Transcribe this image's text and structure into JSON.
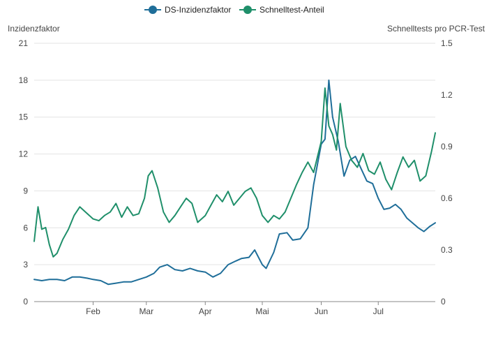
{
  "chart_data": {
    "type": "line",
    "x_kind": "date",
    "x_range": [
      "2022-01-01",
      "2022-07-31"
    ],
    "x_tick_labels": [
      {
        "date": "2022-02-01",
        "label": "Feb"
      },
      {
        "date": "2022-03-01",
        "label": "Mar"
      },
      {
        "date": "2022-04-01",
        "label": "Apr"
      },
      {
        "date": "2022-05-01",
        "label": "Mai"
      },
      {
        "date": "2022-06-01",
        "label": "Jun"
      },
      {
        "date": "2022-07-01",
        "label": "Jul"
      }
    ],
    "y_left": {
      "label": "Inzidenzfaktor",
      "ylim": [
        0,
        21
      ],
      "ticks": [
        "0",
        "3",
        "6",
        "9",
        "12",
        "15",
        "18",
        "21"
      ]
    },
    "y_right": {
      "label": "Schnelltests pro PCR-Test",
      "ylim": [
        0,
        1.5
      ],
      "ticks": [
        "0",
        "0.3",
        "0.6",
        "0.9",
        "1.2",
        "1.5"
      ]
    },
    "grid": true,
    "legend_position": "top-center",
    "series": [
      {
        "name": "DS-Inzidenzfaktor",
        "axis": "left",
        "color": "#1f6e99",
        "points": [
          [
            "2022-01-01",
            1.8
          ],
          [
            "2022-01-05",
            1.7
          ],
          [
            "2022-01-09",
            1.8
          ],
          [
            "2022-01-13",
            1.8
          ],
          [
            "2022-01-17",
            1.7
          ],
          [
            "2022-01-21",
            2.0
          ],
          [
            "2022-01-25",
            2.0
          ],
          [
            "2022-01-29",
            1.9
          ],
          [
            "2022-02-01",
            1.8
          ],
          [
            "2022-02-05",
            1.7
          ],
          [
            "2022-02-09",
            1.4
          ],
          [
            "2022-02-13",
            1.5
          ],
          [
            "2022-02-17",
            1.6
          ],
          [
            "2022-02-21",
            1.6
          ],
          [
            "2022-02-25",
            1.8
          ],
          [
            "2022-03-01",
            2.0
          ],
          [
            "2022-03-05",
            2.3
          ],
          [
            "2022-03-08",
            2.8
          ],
          [
            "2022-03-12",
            3.0
          ],
          [
            "2022-03-16",
            2.6
          ],
          [
            "2022-03-20",
            2.5
          ],
          [
            "2022-03-24",
            2.7
          ],
          [
            "2022-03-28",
            2.5
          ],
          [
            "2022-04-01",
            2.4
          ],
          [
            "2022-04-05",
            2.0
          ],
          [
            "2022-04-09",
            2.3
          ],
          [
            "2022-04-13",
            3.0
          ],
          [
            "2022-04-17",
            3.3
          ],
          [
            "2022-04-20",
            3.5
          ],
          [
            "2022-04-24",
            3.6
          ],
          [
            "2022-04-27",
            4.2
          ],
          [
            "2022-05-01",
            3.0
          ],
          [
            "2022-05-03",
            2.7
          ],
          [
            "2022-05-07",
            4.0
          ],
          [
            "2022-05-10",
            5.5
          ],
          [
            "2022-05-14",
            5.6
          ],
          [
            "2022-05-17",
            5.0
          ],
          [
            "2022-05-21",
            5.1
          ],
          [
            "2022-05-25",
            6.0
          ],
          [
            "2022-05-28",
            9.5
          ],
          [
            "2022-06-01",
            12.8
          ],
          [
            "2022-06-03",
            13.2
          ],
          [
            "2022-06-05",
            18.0
          ],
          [
            "2022-06-07",
            15.0
          ],
          [
            "2022-06-10",
            13.0
          ],
          [
            "2022-06-13",
            10.2
          ],
          [
            "2022-06-16",
            11.5
          ],
          [
            "2022-06-19",
            11.8
          ],
          [
            "2022-06-22",
            10.8
          ],
          [
            "2022-06-25",
            9.8
          ],
          [
            "2022-06-28",
            9.6
          ],
          [
            "2022-07-01",
            8.4
          ],
          [
            "2022-07-04",
            7.5
          ],
          [
            "2022-07-07",
            7.6
          ],
          [
            "2022-07-10",
            7.9
          ],
          [
            "2022-07-13",
            7.5
          ],
          [
            "2022-07-16",
            6.8
          ],
          [
            "2022-07-19",
            6.4
          ],
          [
            "2022-07-22",
            6.0
          ],
          [
            "2022-07-25",
            5.7
          ],
          [
            "2022-07-28",
            6.1
          ],
          [
            "2022-07-31",
            6.4
          ]
        ]
      },
      {
        "name": "Schnelltest-Anteil",
        "axis": "right",
        "color": "#1f8f6a",
        "points": [
          [
            "2022-01-01",
            0.35
          ],
          [
            "2022-01-03",
            0.55
          ],
          [
            "2022-01-05",
            0.42
          ],
          [
            "2022-01-07",
            0.43
          ],
          [
            "2022-01-09",
            0.33
          ],
          [
            "2022-01-11",
            0.26
          ],
          [
            "2022-01-13",
            0.28
          ],
          [
            "2022-01-16",
            0.36
          ],
          [
            "2022-01-19",
            0.42
          ],
          [
            "2022-01-22",
            0.5
          ],
          [
            "2022-01-25",
            0.55
          ],
          [
            "2022-01-28",
            0.52
          ],
          [
            "2022-02-01",
            0.48
          ],
          [
            "2022-02-04",
            0.47
          ],
          [
            "2022-02-07",
            0.5
          ],
          [
            "2022-02-10",
            0.52
          ],
          [
            "2022-02-13",
            0.57
          ],
          [
            "2022-02-16",
            0.49
          ],
          [
            "2022-02-19",
            0.55
          ],
          [
            "2022-02-22",
            0.5
          ],
          [
            "2022-02-25",
            0.51
          ],
          [
            "2022-02-28",
            0.6
          ],
          [
            "2022-03-02",
            0.73
          ],
          [
            "2022-03-04",
            0.76
          ],
          [
            "2022-03-07",
            0.66
          ],
          [
            "2022-03-10",
            0.52
          ],
          [
            "2022-03-13",
            0.46
          ],
          [
            "2022-03-16",
            0.5
          ],
          [
            "2022-03-19",
            0.55
          ],
          [
            "2022-03-22",
            0.6
          ],
          [
            "2022-03-25",
            0.57
          ],
          [
            "2022-03-28",
            0.46
          ],
          [
            "2022-04-01",
            0.5
          ],
          [
            "2022-04-04",
            0.56
          ],
          [
            "2022-04-07",
            0.62
          ],
          [
            "2022-04-10",
            0.58
          ],
          [
            "2022-04-13",
            0.64
          ],
          [
            "2022-04-16",
            0.56
          ],
          [
            "2022-04-19",
            0.6
          ],
          [
            "2022-04-22",
            0.64
          ],
          [
            "2022-04-25",
            0.66
          ],
          [
            "2022-04-28",
            0.6
          ],
          [
            "2022-05-01",
            0.5
          ],
          [
            "2022-05-04",
            0.46
          ],
          [
            "2022-05-07",
            0.5
          ],
          [
            "2022-05-10",
            0.48
          ],
          [
            "2022-05-13",
            0.52
          ],
          [
            "2022-05-16",
            0.6
          ],
          [
            "2022-05-19",
            0.68
          ],
          [
            "2022-05-22",
            0.75
          ],
          [
            "2022-05-25",
            0.81
          ],
          [
            "2022-05-28",
            0.75
          ],
          [
            "2022-06-01",
            0.93
          ],
          [
            "2022-06-03",
            1.24
          ],
          [
            "2022-06-05",
            1.02
          ],
          [
            "2022-06-07",
            0.97
          ],
          [
            "2022-06-09",
            0.88
          ],
          [
            "2022-06-11",
            1.15
          ],
          [
            "2022-06-14",
            0.9
          ],
          [
            "2022-06-17",
            0.82
          ],
          [
            "2022-06-20",
            0.78
          ],
          [
            "2022-06-23",
            0.86
          ],
          [
            "2022-06-26",
            0.76
          ],
          [
            "2022-06-29",
            0.74
          ],
          [
            "2022-07-02",
            0.81
          ],
          [
            "2022-07-05",
            0.71
          ],
          [
            "2022-07-08",
            0.65
          ],
          [
            "2022-07-11",
            0.75
          ],
          [
            "2022-07-14",
            0.84
          ],
          [
            "2022-07-17",
            0.78
          ],
          [
            "2022-07-20",
            0.82
          ],
          [
            "2022-07-23",
            0.7
          ],
          [
            "2022-07-26",
            0.73
          ],
          [
            "2022-07-29",
            0.87
          ],
          [
            "2022-07-31",
            0.98
          ]
        ]
      }
    ]
  }
}
